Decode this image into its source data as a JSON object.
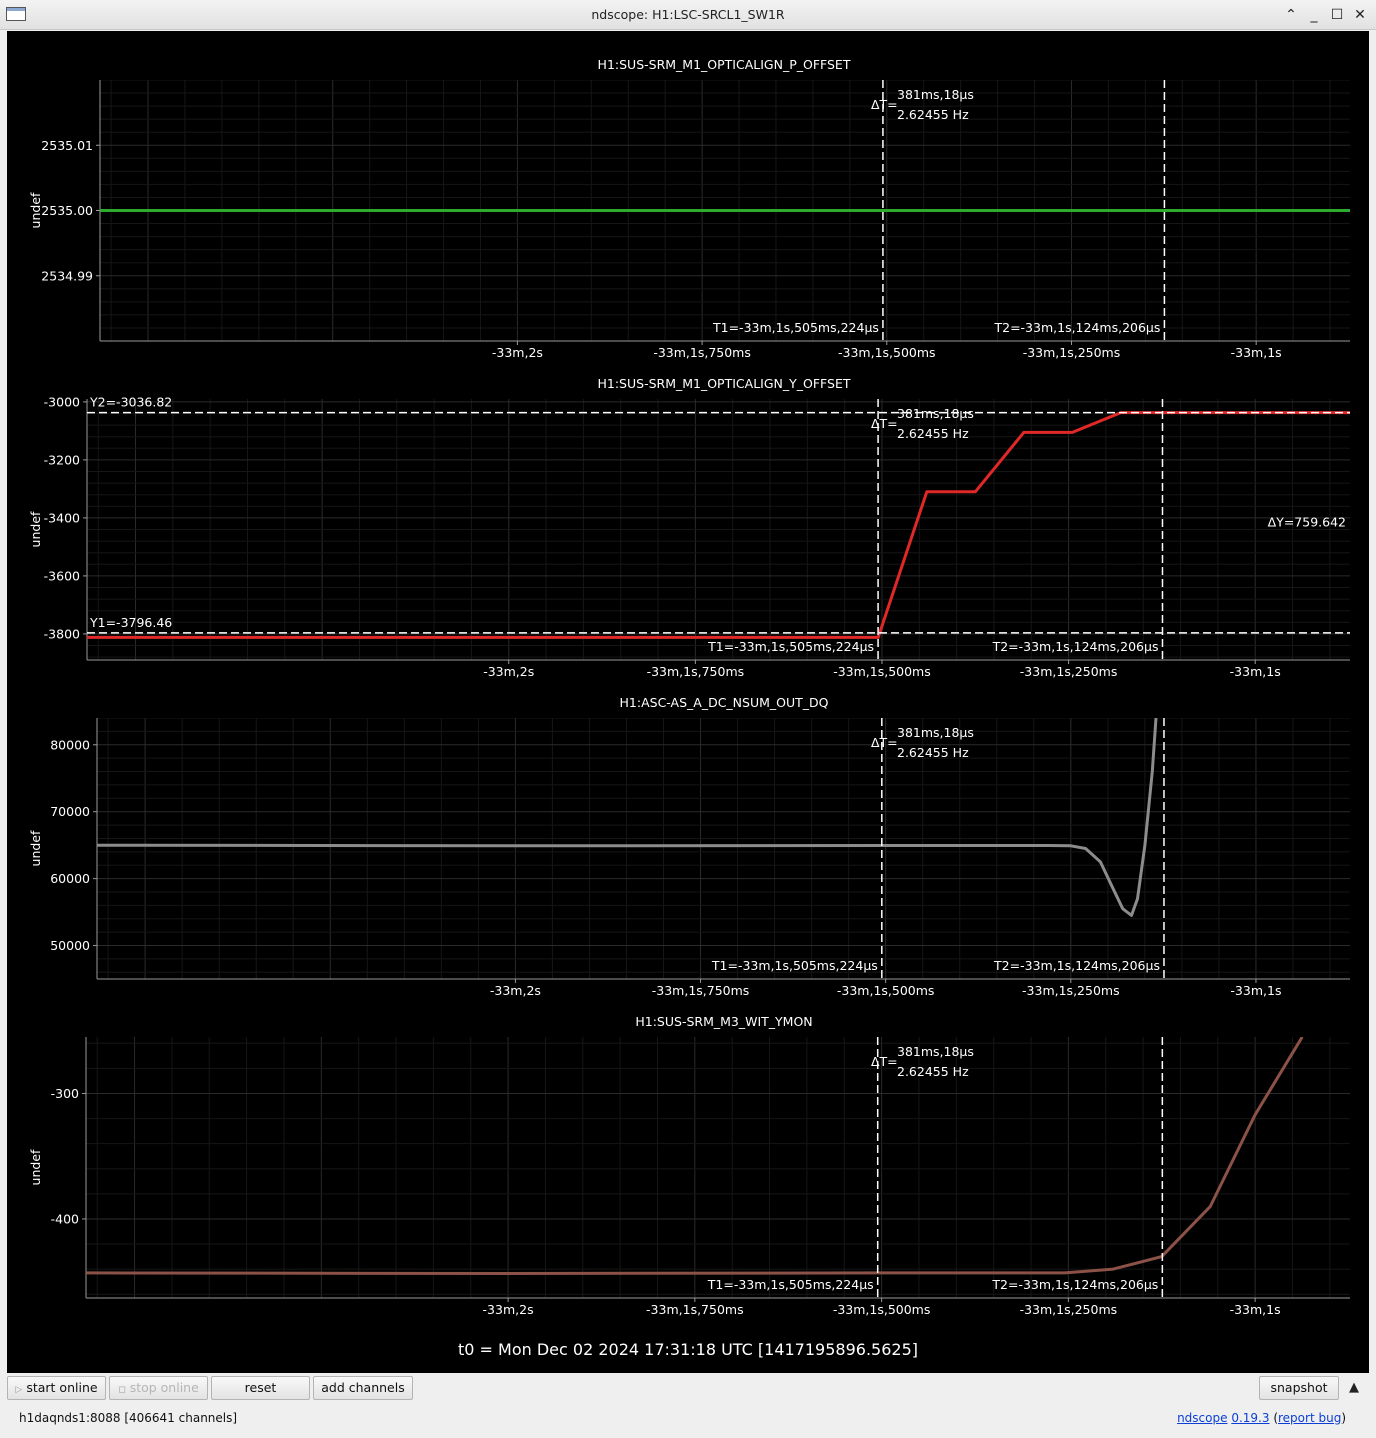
{
  "window": {
    "title": "ndscope: H1:LSC-SRCL1_SW1R",
    "app_icon": "window-icon"
  },
  "titlebar_controls": [
    {
      "name": "restore-up-icon",
      "glyph": "⌃"
    },
    {
      "name": "minimize-icon",
      "glyph": "_"
    },
    {
      "name": "maximize-icon",
      "glyph": "☐"
    },
    {
      "name": "close-icon",
      "glyph": "✕"
    }
  ],
  "colors": {
    "background": "#000000",
    "cursor_lines": "#ffffff",
    "series_p_offset": "#2eaa2e",
    "series_y_offset": "#e02828",
    "series_nsum": "#8c8c8c",
    "series_wit_ymon": "#8c5248"
  },
  "cursors": {
    "t1_label": "T1=-33m,1s,505ms,224µs",
    "t2_label": "T2=-33m,1s,124ms,206µs",
    "delta_t_label": "ΔT=",
    "delta_t_value": "381ms,18µs",
    "delta_freq": "2.62455 Hz",
    "t1_ms": -505.224,
    "t2_ms": -124.206
  },
  "time_axis": {
    "range_ms": [
      -1565,
      127
    ],
    "ticks_ms": [
      -1000,
      -750,
      -500,
      -250,
      0
    ],
    "tick_labels": [
      "-33m,2s",
      "-33m,1s,750ms",
      "-33m,1s,500ms",
      "-33m,1s,250ms",
      "-33m,1s"
    ]
  },
  "chart_data": [
    {
      "type": "line",
      "title": "H1:SUS-SRM_M1_OPTICALIGN_P_OFFSET",
      "ylabel": "undef",
      "ylim": [
        2534.98,
        2535.02
      ],
      "y_ticks": [
        2534.99,
        2535.0,
        2535.01
      ],
      "y_tick_labels": [
        "2534.99",
        "2535.00",
        "2535.01"
      ],
      "series": [
        {
          "x": [
            -1565,
            127
          ],
          "y": [
            2535.0,
            2535.0
          ]
        }
      ]
    },
    {
      "type": "line",
      "title": "H1:SUS-SRM_M1_OPTICALIGN_Y_OFFSET",
      "ylabel": "undef",
      "ylim": [
        -3890,
        -2990
      ],
      "y_ticks": [
        -3800,
        -3600,
        -3400,
        -3200,
        -3000
      ],
      "y_tick_labels": [
        "-3800",
        "-3600",
        "-3400",
        "-3200",
        "-3000"
      ],
      "y_cursors": {
        "y1": -3796.46,
        "y2": -3036.82,
        "y1_label": "Y1=-3796.46",
        "y2_label": "Y2=-3036.82",
        "delta_label": "ΔY=759.642"
      },
      "series": [
        {
          "x": [
            -1565,
            -505,
            -440,
            -375,
            -310,
            -245,
            -180,
            -115,
            127
          ],
          "y": [
            -3812,
            -3812,
            -3310,
            -3310,
            -3105,
            -3105,
            -3037,
            -3037,
            -3037
          ]
        }
      ]
    },
    {
      "type": "line",
      "title": "H1:ASC-AS_A_DC_NSUM_OUT_DQ",
      "ylabel": "undef",
      "ylim": [
        45000,
        84000
      ],
      "y_ticks": [
        50000,
        60000,
        70000,
        80000
      ],
      "y_tick_labels": [
        "50000",
        "60000",
        "70000",
        "80000"
      ],
      "series": [
        {
          "x": [
            -1565,
            -1000,
            -500,
            -280,
            -250,
            -230,
            -210,
            -195,
            -180,
            -168,
            -160,
            -150,
            -140,
            -135
          ],
          "y": [
            65000,
            64900,
            64950,
            64950,
            64900,
            64500,
            62500,
            59000,
            55500,
            54500,
            57000,
            65000,
            76000,
            84000
          ]
        }
      ]
    },
    {
      "type": "line",
      "title": "H1:SUS-SRM_M3_WIT_YMON",
      "ylabel": "undef",
      "ylim": [
        -463,
        -255
      ],
      "y_ticks": [
        -400,
        -300
      ],
      "y_tick_labels": [
        "-400",
        "-300"
      ],
      "series": [
        {
          "x": [
            -1565,
            -1000,
            -500,
            -255,
            -190,
            -125,
            -60,
            0,
            63
          ],
          "y": [
            -443,
            -443.5,
            -443,
            -443,
            -440,
            -430,
            -390,
            -317,
            -255
          ]
        }
      ]
    }
  ],
  "t0_label": "t0 = Mon Dec 02 2024 17:31:18 UTC [1417195896.5625]",
  "toolbar": {
    "start_online": "start online",
    "stop_online": "stop online",
    "reset": "reset",
    "add_channels": "add channels",
    "snapshot": "snapshot",
    "play_icon": "play-icon",
    "stop_icon": "stop-icon",
    "collapse_icon": "collapse-up-icon"
  },
  "status": {
    "server": "h1daqnds1:8088  [406641 channels]",
    "app_name": "ndscope",
    "version": "0.19.3",
    "report_bug": "report bug"
  }
}
